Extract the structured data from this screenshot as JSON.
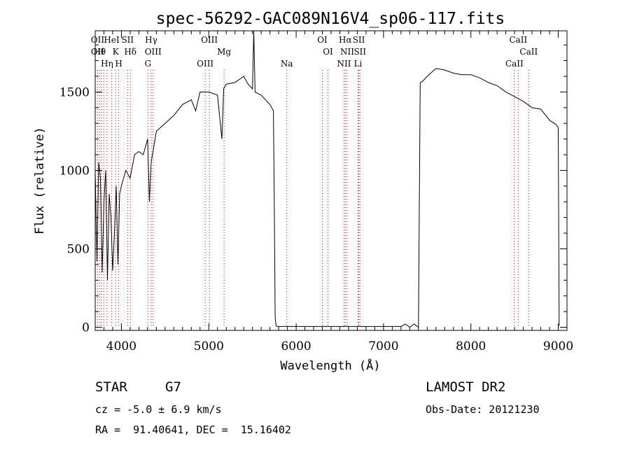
{
  "chart_data": {
    "type": "line",
    "title": "spec-56292-GAC089N16V4_sp06-117.fits",
    "xlabel": "Wavelength (Å)",
    "ylabel": "Flux (relative)",
    "xlim": [
      3700,
      9100
    ],
    "ylim": [
      -20,
      1890
    ],
    "xticks": [
      4000,
      5000,
      6000,
      7000,
      8000,
      9000
    ],
    "yticks": [
      0,
      500,
      1000,
      1500
    ],
    "grid": false,
    "line_color": "#000000",
    "marker_color": "#cc0000",
    "series": [
      {
        "x": [
          3700,
          3720,
          3740,
          3760,
          3780,
          3800,
          3820,
          3840,
          3860,
          3880,
          3900,
          3920,
          3940,
          3960,
          3980,
          4000,
          4050,
          4100,
          4150,
          4200,
          4250,
          4300,
          4320,
          4340,
          4400,
          4500,
          4600,
          4700,
          4800,
          4850,
          4900,
          5000,
          5100,
          5150,
          5170,
          5200,
          5300,
          5400,
          5450,
          5500,
          5515,
          5530,
          5600,
          5700,
          5740,
          5750,
          5760,
          5770,
          5780,
          5800,
          6000,
          6500,
          7000,
          7200,
          7250,
          7300,
          7350,
          7400,
          7420,
          7450,
          7500,
          7600,
          7700,
          7800,
          7900,
          8000,
          8100,
          8200,
          8300,
          8400,
          8500,
          8600,
          8700,
          8800,
          8900,
          8980,
          9000,
          9010
        ],
        "y": [
          1000,
          420,
          1050,
          950,
          350,
          800,
          1000,
          300,
          850,
          700,
          360,
          600,
          900,
          400,
          850,
          900,
          1000,
          950,
          1100,
          1120,
          1100,
          1200,
          800,
          1050,
          1250,
          1300,
          1350,
          1420,
          1450,
          1380,
          1500,
          1500,
          1480,
          1200,
          1520,
          1550,
          1560,
          1600,
          1550,
          1520,
          1890,
          1500,
          1480,
          1420,
          1380,
          760,
          60,
          10,
          5,
          5,
          5,
          5,
          5,
          5,
          20,
          0,
          20,
          0,
          1560,
          1570,
          1600,
          1650,
          1640,
          1620,
          1610,
          1610,
          1590,
          1560,
          1540,
          1500,
          1470,
          1440,
          1400,
          1390,
          1320,
          1290,
          1270,
          10
        ]
      }
    ],
    "lines": [
      {
        "w": 3728,
        "labels": [
          "OII",
          "OII"
        ]
      },
      {
        "w": 3750,
        "labels": [
          "Hθ"
        ]
      },
      {
        "w": 3771,
        "labels": []
      },
      {
        "w": 3798,
        "labels": []
      },
      {
        "w": 3835,
        "labels": [
          "Hη"
        ]
      },
      {
        "w": 3889,
        "labels": [
          "HeI"
        ]
      },
      {
        "w": 3934,
        "labels": [
          "K"
        ]
      },
      {
        "w": 3969,
        "labels": [
          "H"
        ]
      },
      {
        "w": 4071,
        "labels": [
          "SII"
        ]
      },
      {
        "w": 4102,
        "labels": [
          "Hδ"
        ]
      },
      {
        "w": 4304,
        "labels": [
          "G"
        ]
      },
      {
        "w": 4341,
        "labels": [
          "Hγ"
        ]
      },
      {
        "w": 4363,
        "labels": [
          "OIII"
        ]
      },
      {
        "w": 4959,
        "labels": [
          "OIII"
        ]
      },
      {
        "w": 5007,
        "labels": [
          "OIII"
        ]
      },
      {
        "w": 5175,
        "labels": [
          "Mg"
        ]
      },
      {
        "w": 5893,
        "labels": [
          "Na"
        ]
      },
      {
        "w": 6300,
        "labels": [
          "OI"
        ]
      },
      {
        "w": 6364,
        "labels": [
          "OI"
        ]
      },
      {
        "w": 6548,
        "labels": [
          "NII"
        ]
      },
      {
        "w": 6563,
        "labels": [
          "Hα"
        ]
      },
      {
        "w": 6584,
        "labels": [
          "NII"
        ]
      },
      {
        "w": 6708,
        "labels": [
          "Li"
        ]
      },
      {
        "w": 6717,
        "labels": [
          "SII"
        ]
      },
      {
        "w": 6731,
        "labels": [
          "SII"
        ]
      },
      {
        "w": 8498,
        "labels": [
          "CaII"
        ]
      },
      {
        "w": 8542,
        "labels": [
          "CaII"
        ]
      },
      {
        "w": 8662,
        "labels": [
          "CaII"
        ]
      }
    ]
  },
  "info": {
    "object_class": "STAR",
    "subclass": "G7",
    "survey": "LAMOST DR2",
    "cz": "cz = -5.0 ± 6.9 km/s",
    "obs_date": "Obs-Date: 20121230",
    "coords": "RA =  91.40641, DEC =  15.16402"
  }
}
